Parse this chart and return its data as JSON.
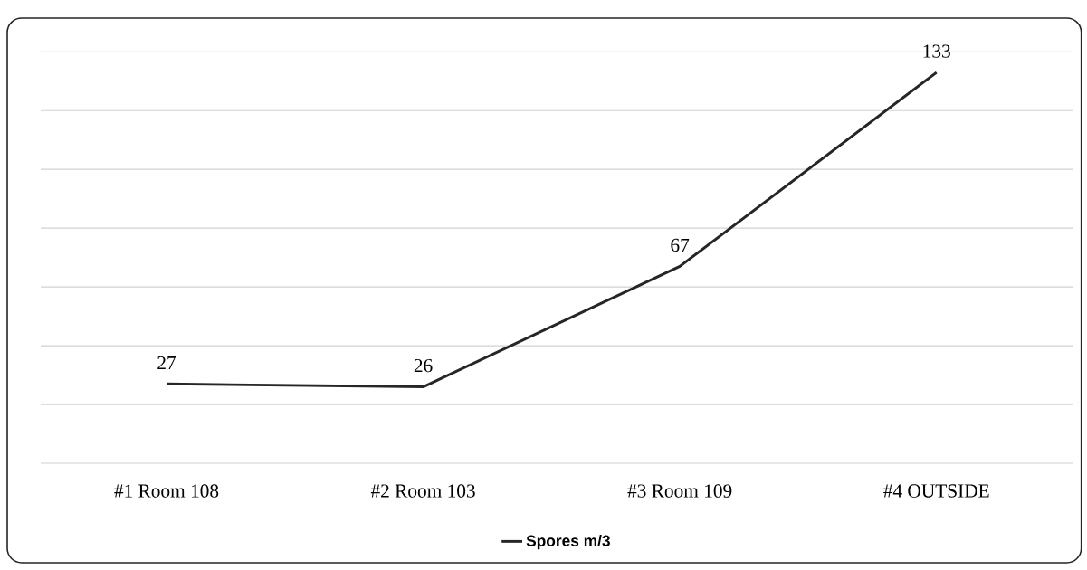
{
  "chart_data": {
    "type": "line",
    "categories": [
      "#1  Room 108",
      "#2  Room 103",
      "#3  Room 109",
      "#4  OUTSIDE"
    ],
    "series": [
      {
        "name": "Spores m/3",
        "color": "#262626",
        "values": [
          27,
          26,
          67,
          133
        ],
        "value_labels": [
          "27",
          "26",
          "67",
          "133"
        ]
      }
    ],
    "ylim": [
      0,
      140
    ],
    "yticks": [
      {
        "value": 0,
        "label": null
      },
      {
        "value": 20,
        "label": null
      },
      {
        "value": 40,
        "label": null
      },
      {
        "value": 60,
        "label": null
      },
      {
        "value": 80,
        "label": null
      },
      {
        "value": 100,
        "label": null
      },
      {
        "value": 120,
        "label": null
      },
      {
        "value": 140,
        "label": null
      }
    ],
    "tick_labels": "x",
    "grid": "y",
    "legend": "bottom",
    "marker": "none",
    "line_style": "solid"
  }
}
